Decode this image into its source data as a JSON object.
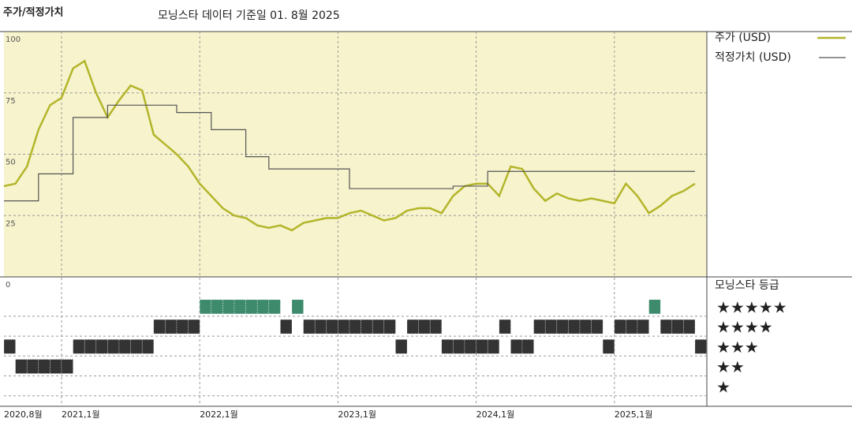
{
  "chart_data": [
    {
      "type": "line",
      "title": "주가/적정가치",
      "subtitle": "모닝스타 데이터 기준일 01. 8월 2025",
      "x": [
        "2020-08",
        "2020-09",
        "2020-10",
        "2020-11",
        "2020-12",
        "2021-01",
        "2021-02",
        "2021-03",
        "2021-04",
        "2021-05",
        "2021-06",
        "2021-07",
        "2021-08",
        "2021-09",
        "2021-10",
        "2021-11",
        "2021-12",
        "2022-01",
        "2022-02",
        "2022-03",
        "2022-04",
        "2022-05",
        "2022-06",
        "2022-07",
        "2022-08",
        "2022-09",
        "2022-10",
        "2022-11",
        "2022-12",
        "2023-01",
        "2023-02",
        "2023-03",
        "2023-04",
        "2023-05",
        "2023-06",
        "2023-07",
        "2023-08",
        "2023-09",
        "2023-10",
        "2023-11",
        "2023-12",
        "2024-01",
        "2024-02",
        "2024-03",
        "2024-04",
        "2024-05",
        "2024-06",
        "2024-07",
        "2024-08",
        "2024-09",
        "2024-10",
        "2024-11",
        "2024-12",
        "2025-01",
        "2025-02",
        "2025-03",
        "2025-04",
        "2025-05",
        "2025-06",
        "2025-07",
        "2025-08"
      ],
      "series": [
        {
          "name": "주가 (USD)",
          "color": "#b3b52a",
          "values": [
            37,
            38,
            45,
            60,
            70,
            73,
            85,
            88,
            75,
            65,
            72,
            78,
            76,
            58,
            54,
            50,
            45,
            38,
            33,
            28,
            25,
            24,
            21,
            20,
            21,
            19,
            22,
            23,
            24,
            24,
            26,
            27,
            25,
            23,
            24,
            27,
            28,
            28,
            26,
            33,
            37,
            38,
            38,
            33,
            45,
            44,
            36,
            31,
            34,
            32,
            31,
            32,
            31,
            30,
            38,
            33,
            26,
            29,
            33,
            35,
            38
          ]
        },
        {
          "name": "적정가치 (USD)",
          "color": "#555555",
          "step": true,
          "values": [
            31,
            31,
            31,
            42,
            42,
            42,
            65,
            65,
            65,
            70,
            70,
            70,
            70,
            70,
            70,
            67,
            67,
            67,
            60,
            60,
            60,
            49,
            49,
            44,
            44,
            44,
            44,
            44,
            44,
            44,
            36,
            36,
            36,
            36,
            36,
            36,
            36,
            36,
            36,
            37,
            37,
            37,
            43,
            43,
            43,
            43,
            43,
            43,
            43,
            43,
            43,
            43,
            43,
            43,
            43,
            43,
            43,
            43,
            43,
            43,
            43
          ]
        }
      ],
      "ylim": [
        0,
        100
      ],
      "yticks": [
        0,
        25,
        50,
        75,
        100
      ],
      "xticks": [
        {
          "value": "2020-08",
          "label": "2020,8월"
        },
        {
          "value": "2021-01",
          "label": "2021,1월"
        },
        {
          "value": "2022-01",
          "label": "2022,1월"
        },
        {
          "value": "2023-01",
          "label": "2023,1월"
        },
        {
          "value": "2024-01",
          "label": "2024,1월"
        },
        {
          "value": "2025-01",
          "label": "2025,1월"
        }
      ],
      "grid": true,
      "background": "#f7f3cd"
    },
    {
      "type": "rating",
      "title": "모닝스타 등급",
      "values": [
        3,
        2,
        2,
        2,
        2,
        2,
        3,
        3,
        3,
        3,
        3,
        3,
        3,
        4,
        4,
        4,
        4,
        5,
        5,
        5,
        5,
        5,
        5,
        5,
        4,
        5,
        4,
        4,
        4,
        4,
        4,
        4,
        4,
        4,
        3,
        4,
        4,
        4,
        3,
        3,
        3,
        3,
        3,
        4,
        3,
        3,
        4,
        4,
        4,
        4,
        4,
        4,
        3,
        4,
        4,
        4,
        5,
        4,
        4,
        4,
        3
      ],
      "ylim": [
        0,
        6.5
      ],
      "yticks": [
        {
          "value": 5,
          "label": "★★★★★"
        },
        {
          "value": 4,
          "label": "★★★★"
        },
        {
          "value": 3,
          "label": "★★★"
        },
        {
          "value": 2,
          "label": "★★"
        },
        {
          "value": 1,
          "label": "★"
        }
      ],
      "colors": {
        "5": "#3d8a6c",
        "other": "#333333"
      }
    }
  ]
}
